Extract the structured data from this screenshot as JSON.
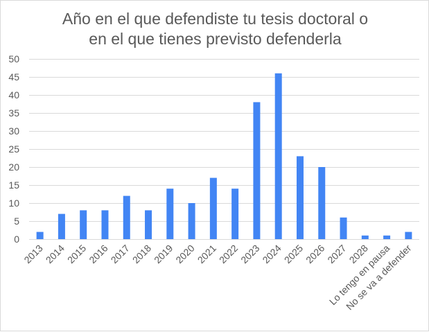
{
  "chart_data": {
    "type": "bar",
    "title": "Año en el que defendiste tu tesis doctoral o\nen el que tienes previsto defenderla",
    "xlabel": "",
    "ylabel": "",
    "ylim": [
      0,
      50
    ],
    "yticks": [
      0,
      5,
      10,
      15,
      20,
      25,
      30,
      35,
      40,
      45,
      50
    ],
    "grid": true,
    "bar_color": "#4285f4",
    "categories": [
      "2013",
      "2014",
      "2015",
      "2016",
      "2017",
      "2018",
      "2019",
      "2020",
      "2021",
      "2022",
      "2023",
      "2024",
      "2025",
      "2026",
      "2027",
      "2028",
      "Lo tengo en pausa",
      "No se va a defender"
    ],
    "values": [
      2,
      7,
      8,
      8,
      12,
      8,
      14,
      10,
      17,
      14,
      38,
      46,
      23,
      20,
      6,
      1,
      1,
      2
    ]
  }
}
